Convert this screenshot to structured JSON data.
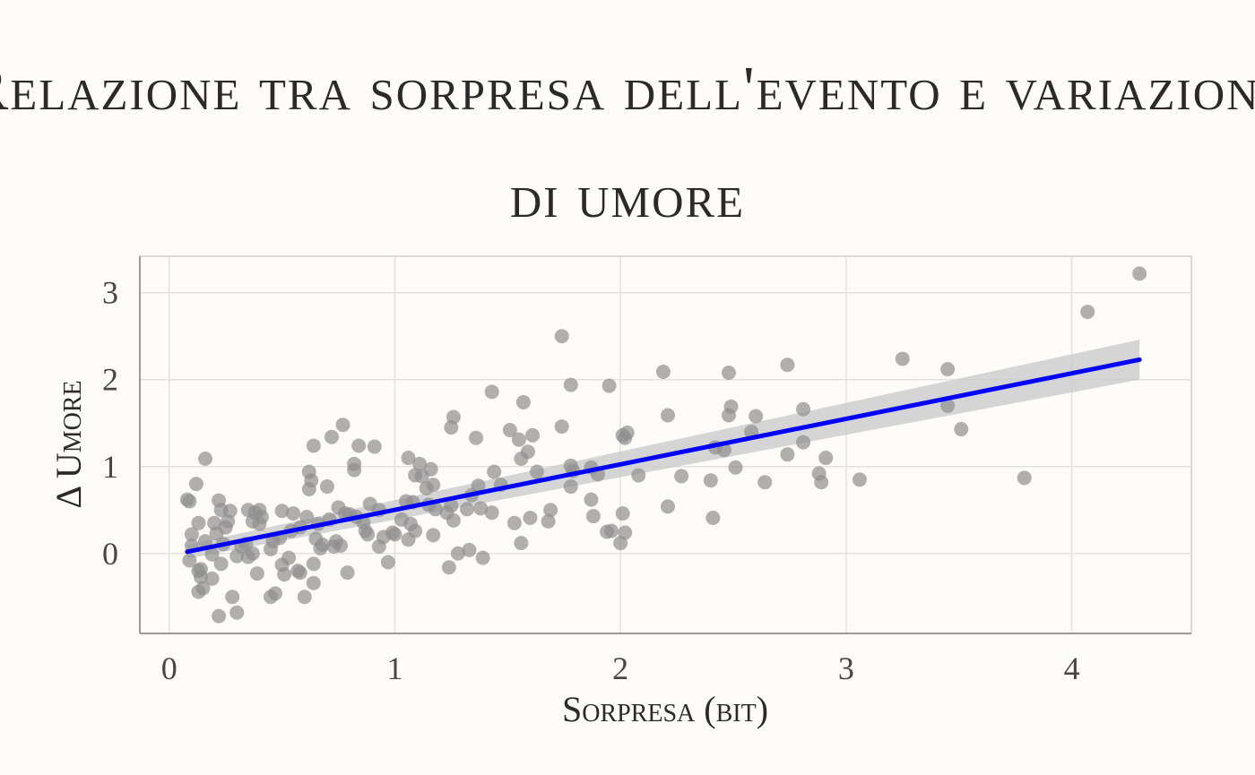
{
  "chart_data": {
    "type": "scatter",
    "title": "Relazione tra sorpresa dell'evento e variazione di umore",
    "xlabel": "Sorpresa (bit)",
    "ylabel": "Δ Umore",
    "xlim": [
      -0.13,
      4.53
    ],
    "ylim": [
      -0.92,
      3.42
    ],
    "xticks": [
      "0",
      "1",
      "2",
      "3",
      "4"
    ],
    "yticks": [
      "0",
      "1",
      "2",
      "3"
    ],
    "grid": true,
    "colors": {
      "points": "#8f8f8f",
      "line": "#0000ff",
      "band": "#c8c8c8"
    },
    "regression": {
      "x": [
        0.08,
        4.3
      ],
      "y": [
        0.02,
        2.23
      ],
      "band_halfwidth": [
        0.08,
        0.23
      ]
    },
    "points": [
      [
        0.08,
        0.62
      ],
      [
        0.09,
        0.6
      ],
      [
        0.09,
        -0.08
      ],
      [
        0.1,
        0.09
      ],
      [
        0.1,
        0.22
      ],
      [
        0.12,
        0.8
      ],
      [
        0.13,
        -0.2
      ],
      [
        0.13,
        0.35
      ],
      [
        0.13,
        -0.44
      ],
      [
        0.14,
        -0.27
      ],
      [
        0.14,
        -0.18
      ],
      [
        0.15,
        -0.4
      ],
      [
        0.16,
        1.09
      ],
      [
        0.16,
        0.14
      ],
      [
        0.19,
        -0.29
      ],
      [
        0.19,
        -0.01
      ],
      [
        0.2,
        0.35
      ],
      [
        0.21,
        0.23
      ],
      [
        0.22,
        0.61
      ],
      [
        0.22,
        -0.72
      ],
      [
        0.23,
        -0.12
      ],
      [
        0.23,
        0.5
      ],
      [
        0.24,
        0.11
      ],
      [
        0.25,
        0.3
      ],
      [
        0.26,
        0.37
      ],
      [
        0.27,
        0.49
      ],
      [
        0.28,
        -0.5
      ],
      [
        0.3,
        -0.68
      ],
      [
        0.3,
        -0.03
      ],
      [
        0.32,
        0.08
      ],
      [
        0.34,
        0.11
      ],
      [
        0.35,
        -0.04
      ],
      [
        0.35,
        0.5
      ],
      [
        0.37,
        0.37
      ],
      [
        0.37,
        0.0
      ],
      [
        0.38,
        0.47
      ],
      [
        0.39,
        -0.23
      ],
      [
        0.4,
        0.34
      ],
      [
        0.4,
        0.5
      ],
      [
        0.41,
        0.42
      ],
      [
        0.45,
        -0.5
      ],
      [
        0.45,
        0.05
      ],
      [
        0.46,
        0.14
      ],
      [
        0.47,
        -0.46
      ],
      [
        0.49,
        0.18
      ],
      [
        0.5,
        -0.13
      ],
      [
        0.5,
        0.49
      ],
      [
        0.51,
        -0.24
      ],
      [
        0.53,
        -0.05
      ],
      [
        0.54,
        0.26
      ],
      [
        0.55,
        0.46
      ],
      [
        0.57,
        -0.2
      ],
      [
        0.58,
        0.3
      ],
      [
        0.58,
        -0.22
      ],
      [
        0.6,
        -0.5
      ],
      [
        0.61,
        0.42
      ],
      [
        0.62,
        0.94
      ],
      [
        0.62,
        0.74
      ],
      [
        0.63,
        0.84
      ],
      [
        0.64,
        -0.34
      ],
      [
        0.64,
        -0.12
      ],
      [
        0.64,
        1.24
      ],
      [
        0.65,
        0.17
      ],
      [
        0.66,
        0.34
      ],
      [
        0.67,
        0.06
      ],
      [
        0.68,
        0.1
      ],
      [
        0.7,
        0.77
      ],
      [
        0.71,
        0.39
      ],
      [
        0.72,
        1.34
      ],
      [
        0.73,
        0.08
      ],
      [
        0.74,
        0.14
      ],
      [
        0.75,
        0.53
      ],
      [
        0.76,
        0.09
      ],
      [
        0.77,
        1.48
      ],
      [
        0.78,
        0.46
      ],
      [
        0.79,
        -0.22
      ],
      [
        0.8,
        0.45
      ],
      [
        0.82,
        1.03
      ],
      [
        0.82,
        0.96
      ],
      [
        0.83,
        0.42
      ],
      [
        0.84,
        1.24
      ],
      [
        0.86,
        0.36
      ],
      [
        0.87,
        0.26
      ],
      [
        0.88,
        0.22
      ],
      [
        0.89,
        0.57
      ],
      [
        0.91,
        1.23
      ],
      [
        0.93,
        0.5
      ],
      [
        0.93,
        0.08
      ],
      [
        0.95,
        0.19
      ],
      [
        0.97,
        -0.1
      ],
      [
        0.99,
        0.24
      ],
      [
        1.0,
        0.22
      ],
      [
        1.03,
        0.39
      ],
      [
        1.05,
        0.6
      ],
      [
        1.06,
        1.1
      ],
      [
        1.06,
        0.16
      ],
      [
        1.07,
        0.34
      ],
      [
        1.08,
        0.59
      ],
      [
        1.09,
        0.26
      ],
      [
        1.09,
        0.9
      ],
      [
        1.11,
        1.03
      ],
      [
        1.12,
        0.89
      ],
      [
        1.14,
        0.75
      ],
      [
        1.15,
        0.56
      ],
      [
        1.16,
        0.97
      ],
      [
        1.17,
        0.21
      ],
      [
        1.17,
        0.79
      ],
      [
        1.18,
        0.51
      ],
      [
        1.23,
        0.47
      ],
      [
        1.24,
        -0.16
      ],
      [
        1.25,
        1.45
      ],
      [
        1.25,
        0.55
      ],
      [
        1.26,
        0.38
      ],
      [
        1.26,
        1.57
      ],
      [
        1.28,
        0.0
      ],
      [
        1.32,
        0.51
      ],
      [
        1.33,
        0.04
      ],
      [
        1.34,
        0.67
      ],
      [
        1.36,
        1.33
      ],
      [
        1.37,
        0.78
      ],
      [
        1.38,
        0.52
      ],
      [
        1.39,
        -0.05
      ],
      [
        1.43,
        1.86
      ],
      [
        1.43,
        0.47
      ],
      [
        1.44,
        0.94
      ],
      [
        1.47,
        0.79
      ],
      [
        1.51,
        1.42
      ],
      [
        1.53,
        0.35
      ],
      [
        1.55,
        1.31
      ],
      [
        1.56,
        0.12
      ],
      [
        1.56,
        1.09
      ],
      [
        1.57,
        1.74
      ],
      [
        1.59,
        1.17
      ],
      [
        1.6,
        0.41
      ],
      [
        1.61,
        1.36
      ],
      [
        1.63,
        0.94
      ],
      [
        1.68,
        0.37
      ],
      [
        1.69,
        0.5
      ],
      [
        1.74,
        2.5
      ],
      [
        1.74,
        1.46
      ],
      [
        1.78,
        0.77
      ],
      [
        1.78,
        1.94
      ],
      [
        1.78,
        1.01
      ],
      [
        1.79,
        0.95
      ],
      [
        1.87,
        0.99
      ],
      [
        1.87,
        0.62
      ],
      [
        1.88,
        0.43
      ],
      [
        1.9,
        0.91
      ],
      [
        1.94,
        0.25
      ],
      [
        1.95,
        1.93
      ],
      [
        1.96,
        0.26
      ],
      [
        2.0,
        0.12
      ],
      [
        2.01,
        0.46
      ],
      [
        2.01,
        1.36
      ],
      [
        2.02,
        0.24
      ],
      [
        2.02,
        1.33
      ],
      [
        2.03,
        1.39
      ],
      [
        2.08,
        0.9
      ],
      [
        2.19,
        2.09
      ],
      [
        2.21,
        1.59
      ],
      [
        2.21,
        0.54
      ],
      [
        2.27,
        0.89
      ],
      [
        2.4,
        0.84
      ],
      [
        2.41,
        0.41
      ],
      [
        2.42,
        1.22
      ],
      [
        2.46,
        1.19
      ],
      [
        2.48,
        1.59
      ],
      [
        2.48,
        2.08
      ],
      [
        2.49,
        1.69
      ],
      [
        2.51,
        0.99
      ],
      [
        2.58,
        1.4
      ],
      [
        2.6,
        1.58
      ],
      [
        2.64,
        0.82
      ],
      [
        2.74,
        2.17
      ],
      [
        2.74,
        1.14
      ],
      [
        2.81,
        1.28
      ],
      [
        2.81,
        1.66
      ],
      [
        2.88,
        0.92
      ],
      [
        2.89,
        0.82
      ],
      [
        2.91,
        1.1
      ],
      [
        3.06,
        0.85
      ],
      [
        3.25,
        2.24
      ],
      [
        3.45,
        2.12
      ],
      [
        3.45,
        1.7
      ],
      [
        3.51,
        1.43
      ],
      [
        3.79,
        0.87
      ],
      [
        4.07,
        2.78
      ],
      [
        4.3,
        3.22
      ]
    ]
  }
}
